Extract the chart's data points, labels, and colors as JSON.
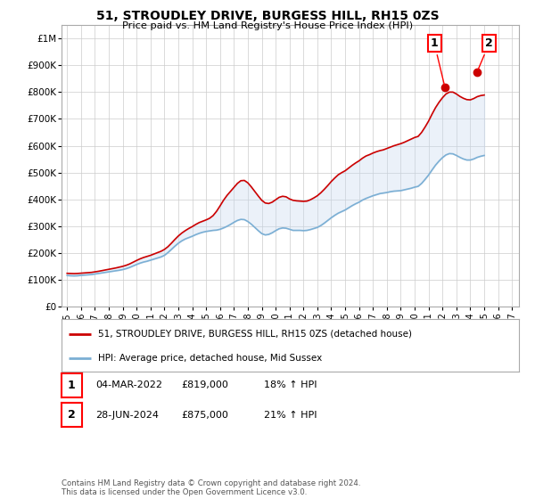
{
  "title": "51, STROUDLEY DRIVE, BURGESS HILL, RH15 0ZS",
  "subtitle": "Price paid vs. HM Land Registry's House Price Index (HPI)",
  "ylim": [
    0,
    1050000
  ],
  "yticks": [
    0,
    100000,
    200000,
    300000,
    400000,
    500000,
    600000,
    700000,
    800000,
    900000,
    1000000
  ],
  "ytick_labels": [
    "£0",
    "£100K",
    "£200K",
    "£300K",
    "£400K",
    "£500K",
    "£600K",
    "£700K",
    "£800K",
    "£900K",
    "£1M"
  ],
  "xlim_start": 1994.6,
  "xlim_end": 2027.5,
  "xtick_years": [
    1995,
    1996,
    1997,
    1998,
    1999,
    2000,
    2001,
    2002,
    2003,
    2004,
    2005,
    2006,
    2007,
    2008,
    2009,
    2010,
    2011,
    2012,
    2013,
    2014,
    2015,
    2016,
    2017,
    2018,
    2019,
    2020,
    2021,
    2022,
    2023,
    2024,
    2025,
    2026,
    2027
  ],
  "hpi_color": "#7bafd4",
  "property_color": "#cc0000",
  "fill_color": "#c6d9f0",
  "transaction1_x": 2022.17,
  "transaction1_y": 819000,
  "transaction2_x": 2024.49,
  "transaction2_y": 875000,
  "legend_property": "51, STROUDLEY DRIVE, BURGESS HILL, RH15 0ZS (detached house)",
  "legend_hpi": "HPI: Average price, detached house, Mid Sussex",
  "table_rows": [
    {
      "num": "1",
      "date": "04-MAR-2022",
      "price": "£819,000",
      "hpi": "18% ↑ HPI"
    },
    {
      "num": "2",
      "date": "28-JUN-2024",
      "price": "£875,000",
      "hpi": "21% ↑ HPI"
    }
  ],
  "footer": "Contains HM Land Registry data © Crown copyright and database right 2024.\nThis data is licensed under the Open Government Licence v3.0.",
  "bg_color": "#ffffff",
  "grid_color": "#cccccc",
  "hpi_data": [
    [
      1995.0,
      117000
    ],
    [
      1995.25,
      116000
    ],
    [
      1995.5,
      115500
    ],
    [
      1995.75,
      116000
    ],
    [
      1996.0,
      117500
    ],
    [
      1996.25,
      118500
    ],
    [
      1996.5,
      119500
    ],
    [
      1996.75,
      120500
    ],
    [
      1997.0,
      122500
    ],
    [
      1997.25,
      124500
    ],
    [
      1997.5,
      126500
    ],
    [
      1997.75,
      128500
    ],
    [
      1998.0,
      130500
    ],
    [
      1998.25,
      132500
    ],
    [
      1998.5,
      134500
    ],
    [
      1998.75,
      136500
    ],
    [
      1999.0,
      139000
    ],
    [
      1999.25,
      142500
    ],
    [
      1999.5,
      147000
    ],
    [
      1999.75,
      152500
    ],
    [
      2000.0,
      158000
    ],
    [
      2000.25,
      163000
    ],
    [
      2000.5,
      167000
    ],
    [
      2000.75,
      170000
    ],
    [
      2001.0,
      174000
    ],
    [
      2001.25,
      178000
    ],
    [
      2001.5,
      182000
    ],
    [
      2001.75,
      186000
    ],
    [
      2002.0,
      192000
    ],
    [
      2002.25,
      202000
    ],
    [
      2002.5,
      214000
    ],
    [
      2002.75,
      226000
    ],
    [
      2003.0,
      237000
    ],
    [
      2003.25,
      246000
    ],
    [
      2003.5,
      253000
    ],
    [
      2003.75,
      258000
    ],
    [
      2004.0,
      263000
    ],
    [
      2004.25,
      269000
    ],
    [
      2004.5,
      274000
    ],
    [
      2004.75,
      278000
    ],
    [
      2005.0,
      281000
    ],
    [
      2005.25,
      283000
    ],
    [
      2005.5,
      285000
    ],
    [
      2005.75,
      286000
    ],
    [
      2006.0,
      289000
    ],
    [
      2006.25,
      294000
    ],
    [
      2006.5,
      300000
    ],
    [
      2006.75,
      307000
    ],
    [
      2007.0,
      315000
    ],
    [
      2007.25,
      322000
    ],
    [
      2007.5,
      326000
    ],
    [
      2007.75,
      325000
    ],
    [
      2008.0,
      318000
    ],
    [
      2008.25,
      308000
    ],
    [
      2008.5,
      296000
    ],
    [
      2008.75,
      284000
    ],
    [
      2009.0,
      273000
    ],
    [
      2009.25,
      268000
    ],
    [
      2009.5,
      270000
    ],
    [
      2009.75,
      276000
    ],
    [
      2010.0,
      284000
    ],
    [
      2010.25,
      291000
    ],
    [
      2010.5,
      294000
    ],
    [
      2010.75,
      293000
    ],
    [
      2011.0,
      289000
    ],
    [
      2011.25,
      285000
    ],
    [
      2011.5,
      285000
    ],
    [
      2011.75,
      285000
    ],
    [
      2012.0,
      284000
    ],
    [
      2012.25,
      285000
    ],
    [
      2012.5,
      288000
    ],
    [
      2012.75,
      292000
    ],
    [
      2013.0,
      296000
    ],
    [
      2013.25,
      303000
    ],
    [
      2013.5,
      312000
    ],
    [
      2013.75,
      322000
    ],
    [
      2014.0,
      332000
    ],
    [
      2014.25,
      341000
    ],
    [
      2014.5,
      349000
    ],
    [
      2014.75,
      355000
    ],
    [
      2015.0,
      361000
    ],
    [
      2015.25,
      369000
    ],
    [
      2015.5,
      377000
    ],
    [
      2015.75,
      384000
    ],
    [
      2016.0,
      390000
    ],
    [
      2016.25,
      398000
    ],
    [
      2016.5,
      404000
    ],
    [
      2016.75,
      409000
    ],
    [
      2017.0,
      414000
    ],
    [
      2017.25,
      418000
    ],
    [
      2017.5,
      422000
    ],
    [
      2017.75,
      424000
    ],
    [
      2018.0,
      426000
    ],
    [
      2018.25,
      429000
    ],
    [
      2018.5,
      431000
    ],
    [
      2018.75,
      432000
    ],
    [
      2019.0,
      433000
    ],
    [
      2019.25,
      436000
    ],
    [
      2019.5,
      439000
    ],
    [
      2019.75,
      442000
    ],
    [
      2020.0,
      446000
    ],
    [
      2020.25,
      449000
    ],
    [
      2020.5,
      460000
    ],
    [
      2020.75,
      475000
    ],
    [
      2021.0,
      491000
    ],
    [
      2021.25,
      510000
    ],
    [
      2021.5,
      528000
    ],
    [
      2021.75,
      543000
    ],
    [
      2022.0,
      556000
    ],
    [
      2022.25,
      566000
    ],
    [
      2022.5,
      571000
    ],
    [
      2022.75,
      570000
    ],
    [
      2023.0,
      564000
    ],
    [
      2023.25,
      557000
    ],
    [
      2023.5,
      551000
    ],
    [
      2023.75,
      547000
    ],
    [
      2024.0,
      547000
    ],
    [
      2024.25,
      551000
    ],
    [
      2024.5,
      557000
    ],
    [
      2024.75,
      561000
    ],
    [
      2025.0,
      564000
    ]
  ],
  "property_data": [
    [
      1995.0,
      125000
    ],
    [
      1995.25,
      124500
    ],
    [
      1995.5,
      124000
    ],
    [
      1995.75,
      124500
    ],
    [
      1996.0,
      125500
    ],
    [
      1996.25,
      126500
    ],
    [
      1996.5,
      127500
    ],
    [
      1996.75,
      128500
    ],
    [
      1997.0,
      130500
    ],
    [
      1997.25,
      132500
    ],
    [
      1997.5,
      135000
    ],
    [
      1997.75,
      137500
    ],
    [
      1998.0,
      140000
    ],
    [
      1998.25,
      142500
    ],
    [
      1998.5,
      145000
    ],
    [
      1998.75,
      148000
    ],
    [
      1999.0,
      151000
    ],
    [
      1999.25,
      155000
    ],
    [
      1999.5,
      160000
    ],
    [
      1999.75,
      166500
    ],
    [
      2000.0,
      173000
    ],
    [
      2000.25,
      179000
    ],
    [
      2000.5,
      184000
    ],
    [
      2000.75,
      188000
    ],
    [
      2001.0,
      192000
    ],
    [
      2001.25,
      197000
    ],
    [
      2001.5,
      202000
    ],
    [
      2001.75,
      207000
    ],
    [
      2002.0,
      214000
    ],
    [
      2002.25,
      224000
    ],
    [
      2002.5,
      237000
    ],
    [
      2002.75,
      251000
    ],
    [
      2003.0,
      264000
    ],
    [
      2003.25,
      275000
    ],
    [
      2003.5,
      284000
    ],
    [
      2003.75,
      292000
    ],
    [
      2004.0,
      299000
    ],
    [
      2004.25,
      307000
    ],
    [
      2004.5,
      314000
    ],
    [
      2004.75,
      319000
    ],
    [
      2005.0,
      324000
    ],
    [
      2005.25,
      330000
    ],
    [
      2005.5,
      340000
    ],
    [
      2005.75,
      356000
    ],
    [
      2006.0,
      376000
    ],
    [
      2006.25,
      397000
    ],
    [
      2006.5,
      415000
    ],
    [
      2006.75,
      430000
    ],
    [
      2007.0,
      445000
    ],
    [
      2007.25,
      460000
    ],
    [
      2007.5,
      470000
    ],
    [
      2007.75,
      471000
    ],
    [
      2008.0,
      462000
    ],
    [
      2008.25,
      447000
    ],
    [
      2008.5,
      430000
    ],
    [
      2008.75,
      413000
    ],
    [
      2009.0,
      397000
    ],
    [
      2009.25,
      387000
    ],
    [
      2009.5,
      385000
    ],
    [
      2009.75,
      390000
    ],
    [
      2010.0,
      399000
    ],
    [
      2010.25,
      408000
    ],
    [
      2010.5,
      412000
    ],
    [
      2010.75,
      410000
    ],
    [
      2011.0,
      402000
    ],
    [
      2011.25,
      397000
    ],
    [
      2011.5,
      395000
    ],
    [
      2011.75,
      394000
    ],
    [
      2012.0,
      393000
    ],
    [
      2012.25,
      394000
    ],
    [
      2012.5,
      399000
    ],
    [
      2012.75,
      406000
    ],
    [
      2013.0,
      414000
    ],
    [
      2013.25,
      425000
    ],
    [
      2013.5,
      438000
    ],
    [
      2013.75,
      452000
    ],
    [
      2014.0,
      467000
    ],
    [
      2014.25,
      480000
    ],
    [
      2014.5,
      492000
    ],
    [
      2014.75,
      500000
    ],
    [
      2015.0,
      507000
    ],
    [
      2015.25,
      517000
    ],
    [
      2015.5,
      527000
    ],
    [
      2015.75,
      536000
    ],
    [
      2016.0,
      544000
    ],
    [
      2016.25,
      554000
    ],
    [
      2016.5,
      562000
    ],
    [
      2016.75,
      567000
    ],
    [
      2017.0,
      573000
    ],
    [
      2017.25,
      578000
    ],
    [
      2017.5,
      582000
    ],
    [
      2017.75,
      585000
    ],
    [
      2018.0,
      590000
    ],
    [
      2018.25,
      595000
    ],
    [
      2018.5,
      600000
    ],
    [
      2018.75,
      604000
    ],
    [
      2019.0,
      608000
    ],
    [
      2019.25,
      613000
    ],
    [
      2019.5,
      619000
    ],
    [
      2019.75,
      625000
    ],
    [
      2020.0,
      631000
    ],
    [
      2020.25,
      635000
    ],
    [
      2020.5,
      650000
    ],
    [
      2020.75,
      670000
    ],
    [
      2021.0,
      692000
    ],
    [
      2021.25,
      718000
    ],
    [
      2021.5,
      742000
    ],
    [
      2021.75,
      762000
    ],
    [
      2022.0,
      779000
    ],
    [
      2022.25,
      793000
    ],
    [
      2022.5,
      800000
    ],
    [
      2022.75,
      800000
    ],
    [
      2023.0,
      793000
    ],
    [
      2023.25,
      784000
    ],
    [
      2023.5,
      777000
    ],
    [
      2023.75,
      772000
    ],
    [
      2024.0,
      771000
    ],
    [
      2024.25,
      776000
    ],
    [
      2024.5,
      783000
    ],
    [
      2024.75,
      787000
    ],
    [
      2025.0,
      789000
    ]
  ]
}
